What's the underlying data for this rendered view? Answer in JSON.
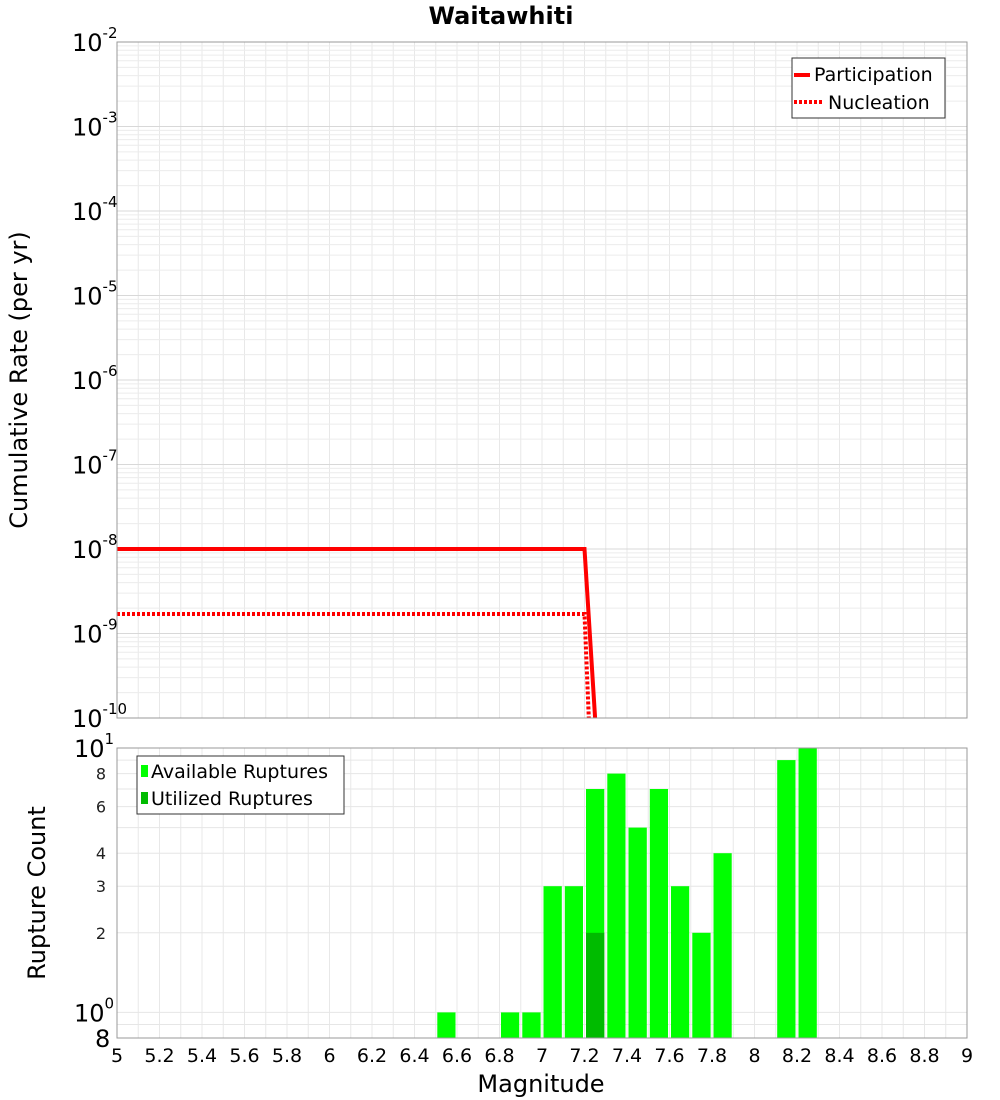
{
  "chart_data": [
    {
      "type": "line",
      "title": "Waitawhiti",
      "ylabel": "Cumulative Rate (per yr)",
      "xlim": [
        5,
        9
      ],
      "ylim": [
        1e-10,
        0.01
      ],
      "yscale": "log",
      "grid": true,
      "legend_position": "top-right",
      "y_ticks": [
        {
          "base": "10",
          "exp": "-2",
          "value": 0.01
        },
        {
          "base": "10",
          "exp": "-3",
          "value": 0.001
        },
        {
          "base": "10",
          "exp": "-4",
          "value": 0.0001
        },
        {
          "base": "10",
          "exp": "-5",
          "value": 1e-05
        },
        {
          "base": "10",
          "exp": "-6",
          "value": 1e-06
        },
        {
          "base": "10",
          "exp": "-7",
          "value": 1e-07
        },
        {
          "base": "10",
          "exp": "-8",
          "value": 1e-08
        },
        {
          "base": "10",
          "exp": "-9",
          "value": 1e-09
        },
        {
          "base": "10",
          "exp": "-10",
          "value": 1e-10
        }
      ],
      "series": [
        {
          "name": "Participation",
          "style": "solid",
          "color": "#ff0000",
          "x": [
            5.0,
            7.2,
            7.25
          ],
          "y": [
            1e-08,
            1e-08,
            1e-10
          ]
        },
        {
          "name": "Nucleation",
          "style": "dotted",
          "color": "#ff0000",
          "x": [
            5.0,
            7.2,
            7.22
          ],
          "y": [
            1.7e-09,
            1.7e-09,
            1e-10
          ]
        }
      ]
    },
    {
      "type": "bar",
      "xlabel": "Magnitude",
      "ylabel": "Rupture Count",
      "xlim": [
        5,
        9
      ],
      "ylim": [
        0.8,
        10
      ],
      "yscale": "log",
      "grid": true,
      "legend_position": "top-left",
      "bin_width": 0.1,
      "x_ticks": [
        "5",
        "5.2",
        "5.4",
        "5.6",
        "5.8",
        "6",
        "6.2",
        "6.4",
        "6.6",
        "6.8",
        "7",
        "7.2",
        "7.4",
        "7.6",
        "7.8",
        "8",
        "8.2",
        "8.4",
        "8.6",
        "8.8",
        "9"
      ],
      "x_tick_values": [
        5,
        5.2,
        5.4,
        5.6,
        5.8,
        6,
        6.2,
        6.4,
        6.6,
        6.8,
        7,
        7.2,
        7.4,
        7.6,
        7.8,
        8,
        8.2,
        8.4,
        8.6,
        8.8,
        9
      ],
      "y_ticks": [
        {
          "label": "10",
          "sup": "1",
          "value": 10,
          "size": "big"
        },
        {
          "label": "8",
          "sup": "",
          "value": 8,
          "size": "small"
        },
        {
          "label": "6",
          "sup": "",
          "value": 6,
          "size": "small"
        },
        {
          "label": "4",
          "sup": "",
          "value": 4,
          "size": "small"
        },
        {
          "label": "3",
          "sup": "",
          "value": 3,
          "size": "small"
        },
        {
          "label": "2",
          "sup": "",
          "value": 2,
          "size": "small"
        },
        {
          "label": "10",
          "sup": "0",
          "value": 1,
          "size": "big"
        },
        {
          "label": "8",
          "sup": "",
          "value": 0.8,
          "size": "big"
        }
      ],
      "series": [
        {
          "name": "Available Ruptures",
          "color": "#00ff00",
          "x": [
            6.55,
            6.85,
            6.95,
            7.05,
            7.15,
            7.25,
            7.35,
            7.45,
            7.55,
            7.65,
            7.75,
            7.85,
            8.15,
            8.25
          ],
          "values": [
            1,
            1,
            1,
            3,
            3,
            7,
            8,
            5,
            7,
            3,
            2,
            4,
            9,
            10
          ]
        },
        {
          "name": "Utilized Ruptures",
          "color": "#00bb00",
          "x": [
            7.25
          ],
          "values": [
            2
          ]
        }
      ]
    }
  ]
}
